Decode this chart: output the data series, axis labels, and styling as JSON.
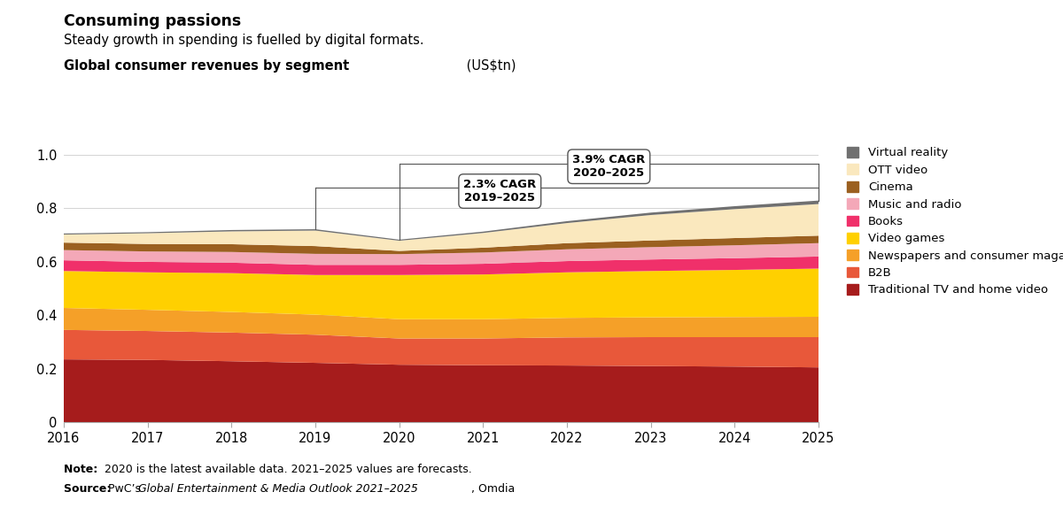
{
  "title": "Consuming passions",
  "subtitle": "Steady growth in spending is fuelled by digital formats.",
  "chart_label_bold": "Global consumer revenues by segment",
  "chart_label_normal": " (US$tn)",
  "years": [
    2016,
    2017,
    2018,
    2019,
    2020,
    2021,
    2022,
    2023,
    2024,
    2025
  ],
  "segments": [
    "Traditional TV and home video",
    "B2B",
    "Newspapers and consumer magazines",
    "Video games",
    "Books",
    "Music and radio",
    "Cinema",
    "OTT video",
    "Virtual reality"
  ],
  "colors": [
    "#A61C1C",
    "#E8583A",
    "#F5A028",
    "#FFD000",
    "#F0306A",
    "#F4A8B8",
    "#9B6020",
    "#FAE8BE",
    "#707070"
  ],
  "data": {
    "Traditional TV and home video": [
      0.235,
      0.233,
      0.228,
      0.222,
      0.215,
      0.213,
      0.212,
      0.21,
      0.208,
      0.205
    ],
    "B2B": [
      0.11,
      0.108,
      0.107,
      0.105,
      0.098,
      0.1,
      0.105,
      0.108,
      0.11,
      0.113
    ],
    "Newspapers and consumer magazines": [
      0.082,
      0.079,
      0.077,
      0.075,
      0.072,
      0.072,
      0.073,
      0.074,
      0.075,
      0.076
    ],
    "Video games": [
      0.138,
      0.14,
      0.145,
      0.148,
      0.165,
      0.167,
      0.17,
      0.173,
      0.176,
      0.18
    ],
    "Books": [
      0.04,
      0.039,
      0.039,
      0.038,
      0.038,
      0.04,
      0.042,
      0.043,
      0.044,
      0.045
    ],
    "Music and radio": [
      0.038,
      0.039,
      0.04,
      0.041,
      0.04,
      0.042,
      0.044,
      0.046,
      0.048,
      0.05
    ],
    "Cinema": [
      0.028,
      0.028,
      0.029,
      0.029,
      0.012,
      0.018,
      0.023,
      0.025,
      0.027,
      0.028
    ],
    "OTT video": [
      0.03,
      0.04,
      0.048,
      0.058,
      0.038,
      0.055,
      0.075,
      0.095,
      0.108,
      0.118
    ],
    "Virtual reality": [
      0.004,
      0.004,
      0.005,
      0.005,
      0.004,
      0.005,
      0.007,
      0.009,
      0.011,
      0.013
    ]
  },
  "ylim": [
    0,
    1.0
  ],
  "yticks": [
    0,
    0.2,
    0.4,
    0.6,
    0.8,
    1.0
  ],
  "background_color": "#ffffff",
  "cagr1_text": "2.3% CAGR\n2019–2025",
  "cagr2_text": "3.9% CAGR\n2020–2025"
}
